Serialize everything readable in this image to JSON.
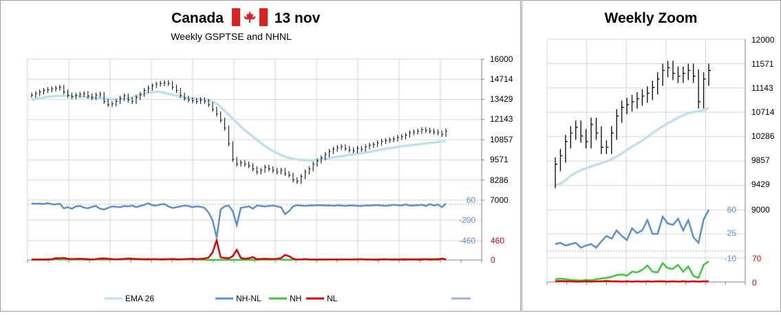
{
  "colors": {
    "ema": "#bfe0ee",
    "nhnl": "#5b8fd0",
    "nh": "#3cc83c",
    "nl": "#e00000",
    "bars": "#000000",
    "grid": "#d6d6d6",
    "left_axis_text": "#5b8fd0",
    "nl_axis_text": "#e00000",
    "border": "#a0a0a0",
    "flag_red": "#e02020"
  },
  "main_panel": {
    "title_country": "Canada",
    "title_date": "13 nov",
    "subtitle": "Weekly GSPTSE  and NHNL",
    "flag_icon": "canada-flag-icon",
    "price_ticks": [
      "16000",
      "14714",
      "13429",
      "12143",
      "10857",
      "9571",
      "8286",
      "7000"
    ],
    "nhnl_ticks": [
      "60",
      "-200",
      "-460"
    ],
    "nl_ticks": [
      "460",
      "0"
    ],
    "legend": [
      {
        "label": "EMA 26",
        "color": "#bfe0ee"
      },
      {
        "label": "NH-NL",
        "color": "#5b8fd0"
      },
      {
        "label": "NH",
        "color": "#3cc83c"
      },
      {
        "label": "NL",
        "color": "#e00000"
      },
      {
        "label": "",
        "color": "#9db6d8"
      }
    ]
  },
  "zoom_panel": {
    "title": "Weekly Zoom",
    "price_ticks": [
      "12000",
      "11571",
      "11143",
      "10714",
      "10286",
      "9857",
      "9429",
      "9000"
    ],
    "nhnl_ticks": [
      "60",
      "25",
      "-10"
    ],
    "nh_ticks": [
      "70",
      "0"
    ]
  },
  "chart_data": [
    {
      "type": "line",
      "title": "Canada 13 nov",
      "subtitle": "Weekly GSPTSE  and NHNL",
      "price_axis": {
        "ylim": [
          7000,
          16000
        ],
        "ticks": [
          16000,
          14714,
          13429,
          12143,
          10857,
          9571,
          8286,
          7000
        ]
      },
      "nhnl_axis": {
        "ticks": [
          60,
          -200,
          -460
        ]
      },
      "nl_axis": {
        "ticks": [
          460,
          0
        ]
      },
      "grid": true,
      "legend_position": "bottom",
      "series": [
        {
          "name": "EMA 26",
          "values": [
            13400,
            13450,
            13500,
            13550,
            13600,
            13620,
            13640,
            13650,
            13660,
            13660,
            13650,
            13630,
            13610,
            13590,
            13560,
            13540,
            13520,
            13500,
            13480,
            13460,
            13440,
            13430,
            13430,
            13450,
            13500,
            13560,
            13630,
            13700,
            13780,
            13850,
            13900,
            13920,
            13900,
            13850,
            13780,
            13720,
            13660,
            13610,
            13560,
            13520,
            13500,
            13470,
            13450,
            13420,
            13380,
            13300,
            13150,
            12950,
            12700,
            12450,
            12200,
            11950,
            11700,
            11480,
            11250,
            11050,
            10850,
            10650,
            10460,
            10280,
            10130,
            10000,
            9880,
            9780,
            9700,
            9640,
            9600,
            9570,
            9550,
            9540,
            9545,
            9565,
            9600,
            9640,
            9680,
            9720,
            9760,
            9800,
            9840,
            9880,
            9920,
            9960,
            10000,
            10040,
            10080,
            10130,
            10180,
            10230,
            10280,
            10320,
            10360,
            10400,
            10440,
            10470,
            10500,
            10530,
            10560,
            10590,
            10620,
            10650,
            10680,
            10710,
            10740,
            10780
          ]
        },
        {
          "name": "GSPTSE",
          "values": [
            13700,
            13800,
            13900,
            14000,
            14050,
            14100,
            14150,
            14200,
            13900,
            13700,
            13600,
            13700,
            13750,
            13800,
            13650,
            13550,
            13700,
            13750,
            13300,
            13100,
            13150,
            13300,
            13500,
            13650,
            13400,
            13300,
            13550,
            13750,
            14000,
            14150,
            14300,
            14400,
            14450,
            14500,
            14450,
            14200,
            14000,
            13700,
            13500,
            13400,
            13350,
            13300,
            13400,
            13300,
            13100,
            12800,
            12500,
            12100,
            11600,
            10600,
            9600,
            9300,
            9400,
            9300,
            9200,
            9000,
            8800,
            8900,
            9100,
            9000,
            8900,
            8800,
            8900,
            8700,
            8600,
            8300,
            8200,
            8500,
            8800,
            9000,
            9300,
            9500,
            9700,
            9900,
            10100,
            10250,
            10350,
            10400,
            10300,
            10200,
            10150,
            10300,
            10250,
            10400,
            10500,
            10550,
            10650,
            10750,
            10800,
            10850,
            10900,
            11000,
            11050,
            11150,
            11300,
            11350,
            11400,
            11500,
            11450,
            11400,
            11350,
            11300,
            11200,
            11400
          ]
        },
        {
          "name": "NH-NL",
          "values": [
            18,
            12,
            16,
            10,
            22,
            8,
            5,
            15,
            -45,
            -30,
            -50,
            -20,
            -15,
            -35,
            -45,
            -25,
            -15,
            -50,
            -60,
            -40,
            -20,
            -25,
            -30,
            -15,
            -20,
            -10,
            -30,
            -15,
            0,
            20,
            -5,
            -10,
            5,
            10,
            -20,
            -40,
            -30,
            -20,
            -10,
            -15,
            -30,
            -20,
            -25,
            -40,
            -100,
            -200,
            -420,
            -60,
            -20,
            -10,
            -80,
            -260,
            -40,
            -30,
            -20,
            -50,
            -10,
            -15,
            -20,
            -15,
            -10,
            -20,
            -30,
            -120,
            -80,
            -20,
            -5,
            -10,
            -15,
            -10,
            -8,
            -6,
            -5,
            -10,
            -8,
            -12,
            -6,
            -10,
            -15,
            -8,
            -10,
            -12,
            -15,
            -8,
            -10,
            -6,
            -4,
            -10,
            -12,
            -8,
            0,
            -5,
            -10,
            5,
            -10,
            -8,
            -5,
            0,
            -15,
            10,
            -10,
            5,
            -30,
            15
          ]
        },
        {
          "name": "NH",
          "values": [
            20,
            15,
            18,
            12,
            25,
            10,
            20,
            30,
            12,
            8,
            15,
            10,
            12,
            8,
            5,
            10,
            15,
            8,
            6,
            10,
            15,
            12,
            10,
            15,
            20,
            25,
            12,
            18,
            22,
            30,
            15,
            12,
            20,
            25,
            15,
            10,
            8,
            10,
            12,
            15,
            10,
            12,
            8,
            5,
            4,
            3,
            2,
            3,
            4,
            5,
            3,
            2,
            3,
            4,
            5,
            6,
            5,
            8,
            6,
            8,
            10,
            12,
            8,
            6,
            5,
            8,
            10,
            12,
            10,
            8,
            12,
            15,
            10,
            12,
            14,
            10,
            12,
            15,
            10,
            12,
            14,
            18,
            15,
            12,
            10,
            14,
            16,
            18,
            20,
            15,
            22,
            18,
            20,
            25,
            18,
            20,
            22,
            26,
            18,
            24,
            20,
            28,
            15,
            30
          ]
        },
        {
          "name": "NL",
          "values": [
            8,
            10,
            6,
            10,
            8,
            15,
            45,
            40,
            50,
            30,
            20,
            25,
            30,
            25,
            20,
            10,
            20,
            35,
            40,
            30,
            20,
            15,
            20,
            25,
            35,
            30,
            25,
            20,
            15,
            10,
            18,
            20,
            10,
            12,
            20,
            25,
            18,
            15,
            20,
            25,
            30,
            20,
            25,
            35,
            60,
            180,
            470,
            60,
            50,
            40,
            90,
            240,
            50,
            30,
            40,
            70,
            20,
            25,
            30,
            25,
            20,
            30,
            45,
            120,
            90,
            30,
            10,
            15,
            20,
            12,
            10,
            8,
            10,
            12,
            10,
            15,
            8,
            12,
            15,
            10,
            12,
            14,
            18,
            10,
            12,
            8,
            6,
            12,
            14,
            10,
            6,
            8,
            12,
            6,
            12,
            10,
            8,
            6,
            18,
            6,
            14,
            8,
            35,
            10
          ]
        }
      ]
    },
    {
      "type": "line",
      "title": "Weekly Zoom",
      "price_axis": {
        "ylim": [
          9000,
          12000
        ],
        "ticks": [
          12000,
          11571,
          11143,
          10714,
          10286,
          9857,
          9429,
          9000
        ]
      },
      "nhnl_axis": {
        "ticks": [
          60,
          25,
          -10
        ]
      },
      "nh_axis": {
        "ticks": [
          70,
          0
        ]
      },
      "grid": true,
      "series": [
        {
          "name": "GSPTSE",
          "values": [
            9800,
            9950,
            10200,
            10350,
            10450,
            10300,
            10200,
            10500,
            10350,
            10100,
            10100,
            10350,
            10650,
            10800,
            10850,
            10900,
            10950,
            11000,
            11050,
            11150,
            11300,
            11450,
            11500,
            11400,
            11350,
            11400,
            11450,
            11350,
            10900,
            11300,
            11450
          ]
        },
        {
          "name": "EMA 26",
          "values": [
            9430,
            9460,
            9520,
            9600,
            9650,
            9700,
            9730,
            9760,
            9790,
            9820,
            9850,
            9890,
            9940,
            9990,
            10050,
            10110,
            10160,
            10220,
            10280,
            10350,
            10410,
            10470,
            10520,
            10570,
            10620,
            10660,
            10700,
            10720,
            10730,
            10750,
            10790
          ]
        },
        {
          "name": "NH-NL",
          "values": [
            10,
            12,
            8,
            10,
            12,
            5,
            8,
            10,
            5,
            14,
            22,
            18,
            30,
            22,
            16,
            33,
            26,
            30,
            45,
            25,
            25,
            50,
            40,
            38,
            47,
            30,
            45,
            20,
            12,
            46,
            60
          ]
        },
        {
          "name": "NH",
          "values": [
            8,
            10,
            8,
            6,
            5,
            4,
            6,
            5,
            8,
            10,
            12,
            15,
            20,
            22,
            18,
            30,
            28,
            35,
            48,
            30,
            28,
            55,
            40,
            38,
            50,
            30,
            45,
            18,
            12,
            50,
            60
          ]
        },
        {
          "name": "NL",
          "values": [
            2,
            3,
            2,
            2,
            1,
            1,
            2,
            1,
            2,
            2,
            3,
            2,
            2,
            1,
            2,
            1,
            2,
            1,
            2,
            1,
            2,
            2,
            1,
            2,
            1,
            2,
            1,
            2,
            1,
            2,
            2
          ]
        }
      ]
    }
  ]
}
